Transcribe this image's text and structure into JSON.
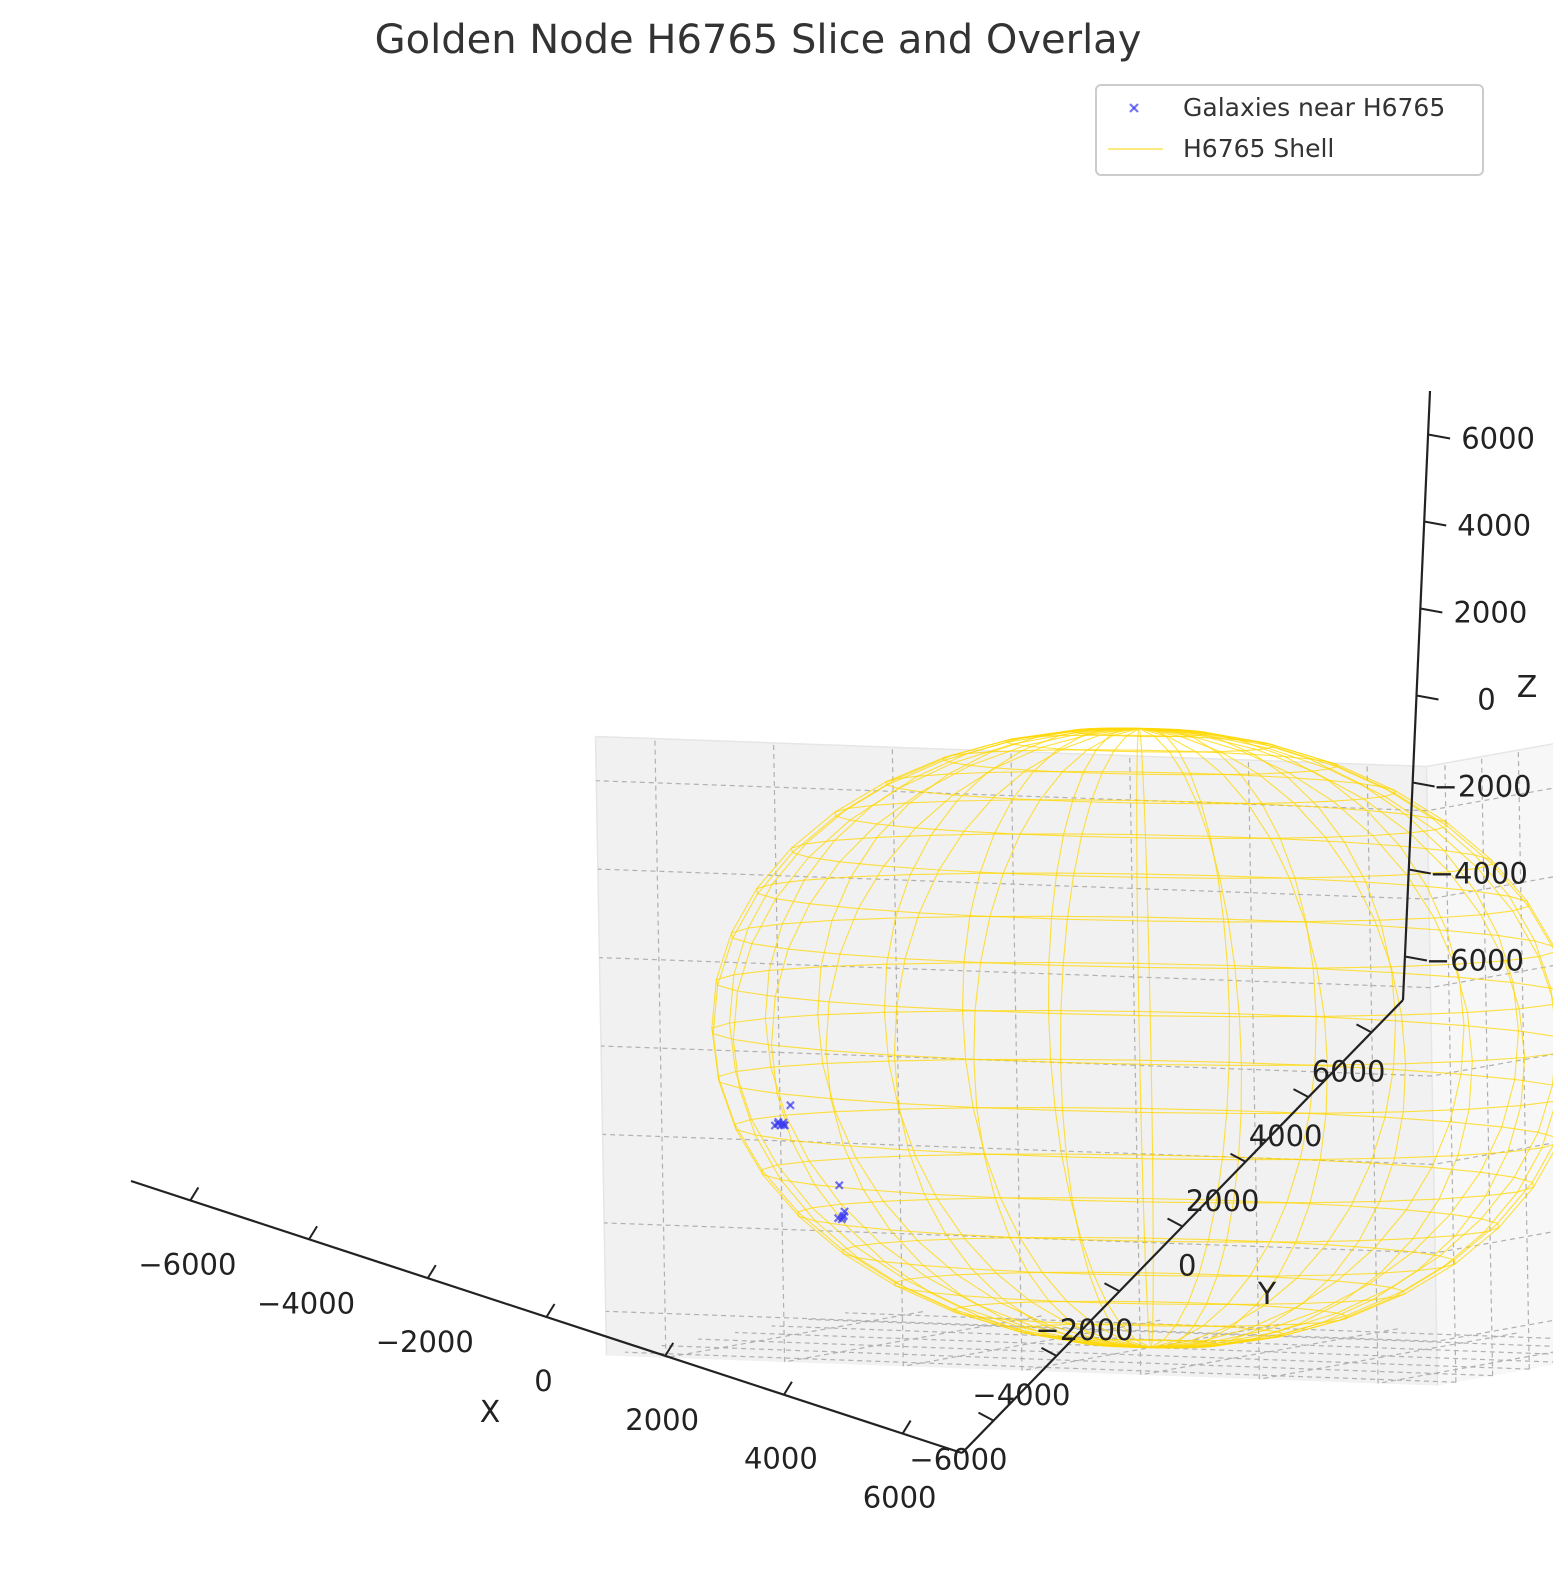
{
  "chart_data": {
    "type": "scatter",
    "title": "Golden Node H6765 Slice and Overlay",
    "xlabel": "X",
    "ylabel": "Y",
    "zlabel": "Z",
    "xlim": [
      -7000,
      7000
    ],
    "ylim": [
      -7000,
      7000
    ],
    "zlim": [
      -7000,
      7000
    ],
    "x_ticks": [
      "−6000",
      "−4000",
      "−2000",
      "0",
      "2000",
      "4000",
      "6000"
    ],
    "y_ticks": [
      "−6000",
      "−4000",
      "−2000",
      "0",
      "2000",
      "4000",
      "6000"
    ],
    "z_ticks": [
      "−6000",
      "−4000",
      "−2000",
      "0",
      "2000",
      "4000",
      "6000"
    ],
    "x_tick_values": [
      -6000,
      -4000,
      -2000,
      0,
      2000,
      4000,
      6000
    ],
    "y_tick_values": [
      -6000,
      -4000,
      -2000,
      0,
      2000,
      4000,
      6000
    ],
    "z_tick_values": [
      -6000,
      -4000,
      -2000,
      0,
      2000,
      4000,
      6000
    ],
    "grid": true,
    "legend_position": "top-right",
    "legend": [
      "Galaxies near H6765",
      "H6765 Shell"
    ],
    "series": [
      {
        "name": "Galaxies near H6765",
        "kind": "scatter3d",
        "color": "#3b3bf0",
        "marker": "x",
        "points": [
          {
            "x": 6650,
            "y": -2100,
            "z": -2000
          },
          {
            "x": 6720,
            "y": -2000,
            "z": -2450
          },
          {
            "x": 6760,
            "y": -2080,
            "z": -2450
          },
          {
            "x": 6800,
            "y": -2060,
            "z": -2450
          },
          {
            "x": 6840,
            "y": -2020,
            "z": -2420
          },
          {
            "x": 6880,
            "y": -1980,
            "z": -2460
          },
          {
            "x": 6830,
            "y": -2010,
            "z": -2380
          },
          {
            "x": 6780,
            "y": -2120,
            "z": -2400
          },
          {
            "x": 6300,
            "y": -3550,
            "z": -3900
          },
          {
            "x": 6250,
            "y": -3650,
            "z": -4500
          },
          {
            "x": 6280,
            "y": -3700,
            "z": -4600
          },
          {
            "x": 6320,
            "y": -3720,
            "z": -4680
          },
          {
            "x": 6350,
            "y": -3620,
            "z": -4650
          },
          {
            "x": 6260,
            "y": -3580,
            "z": -4620
          }
        ]
      },
      {
        "name": "H6765 Shell",
        "kind": "wireframe_sphere",
        "color": "#ffd700",
        "center": [
          0,
          0,
          0
        ],
        "radius": 7000
      }
    ]
  },
  "colors": {
    "pane": "#f2f2f2",
    "grid": "#b0b0b0",
    "shell": "#ffd700",
    "galaxies": "#3b3bf0"
  }
}
